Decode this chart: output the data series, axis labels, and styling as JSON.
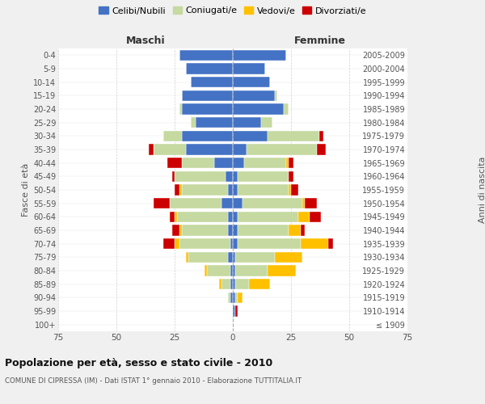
{
  "age_groups": [
    "100+",
    "95-99",
    "90-94",
    "85-89",
    "80-84",
    "75-79",
    "70-74",
    "65-69",
    "60-64",
    "55-59",
    "50-54",
    "45-49",
    "40-44",
    "35-39",
    "30-34",
    "25-29",
    "20-24",
    "15-19",
    "10-14",
    "5-9",
    "0-4"
  ],
  "birth_years": [
    "≤ 1909",
    "1910-1914",
    "1915-1919",
    "1920-1924",
    "1925-1929",
    "1930-1934",
    "1935-1939",
    "1940-1944",
    "1945-1949",
    "1950-1954",
    "1955-1959",
    "1960-1964",
    "1965-1969",
    "1970-1974",
    "1975-1979",
    "1980-1984",
    "1985-1989",
    "1990-1994",
    "1995-1999",
    "2000-2004",
    "2005-2009"
  ],
  "maschi": {
    "celibi": [
      0,
      0,
      1,
      1,
      1,
      2,
      1,
      2,
      2,
      5,
      2,
      3,
      8,
      20,
      22,
      16,
      22,
      22,
      18,
      20,
      23
    ],
    "coniugati": [
      0,
      0,
      1,
      4,
      10,
      17,
      22,
      20,
      22,
      22,
      20,
      22,
      14,
      14,
      8,
      2,
      1,
      0,
      0,
      0,
      0
    ],
    "vedovi": [
      0,
      0,
      0,
      1,
      1,
      1,
      2,
      1,
      1,
      0,
      1,
      0,
      0,
      0,
      0,
      0,
      0,
      0,
      0,
      0,
      0
    ],
    "divorziati": [
      0,
      0,
      0,
      0,
      0,
      0,
      5,
      3,
      2,
      7,
      2,
      1,
      6,
      2,
      0,
      0,
      0,
      0,
      0,
      0,
      0
    ]
  },
  "femmine": {
    "nubili": [
      0,
      1,
      1,
      1,
      1,
      1,
      2,
      2,
      2,
      4,
      2,
      2,
      5,
      6,
      15,
      12,
      22,
      18,
      16,
      14,
      23
    ],
    "coniugate": [
      0,
      0,
      1,
      6,
      14,
      17,
      27,
      22,
      26,
      26,
      22,
      22,
      18,
      30,
      22,
      5,
      2,
      1,
      0,
      0,
      0
    ],
    "vedove": [
      0,
      0,
      2,
      9,
      12,
      12,
      12,
      5,
      5,
      1,
      1,
      0,
      1,
      0,
      0,
      0,
      0,
      0,
      0,
      0,
      0
    ],
    "divorziate": [
      0,
      1,
      0,
      0,
      0,
      0,
      2,
      2,
      5,
      5,
      3,
      2,
      2,
      4,
      2,
      0,
      0,
      0,
      0,
      0,
      0
    ]
  },
  "colors": {
    "celibi": "#4472c4",
    "coniugati": "#c5d9a0",
    "vedovi": "#ffc000",
    "divorziati": "#cc0000"
  },
  "xlim": 75,
  "title": "Popolazione per età, sesso e stato civile - 2010",
  "subtitle": "COMUNE DI CIPRESSA (IM) - Dati ISTAT 1° gennaio 2010 - Elaborazione TUTTITALIA.IT",
  "ylabel_left": "Fasce di età",
  "ylabel_right": "Anni di nascita",
  "xlabel_left": "Maschi",
  "xlabel_right": "Femmine",
  "bg_color": "#f0f0f0",
  "plot_bg": "#ffffff",
  "grid_color": "#cccccc"
}
